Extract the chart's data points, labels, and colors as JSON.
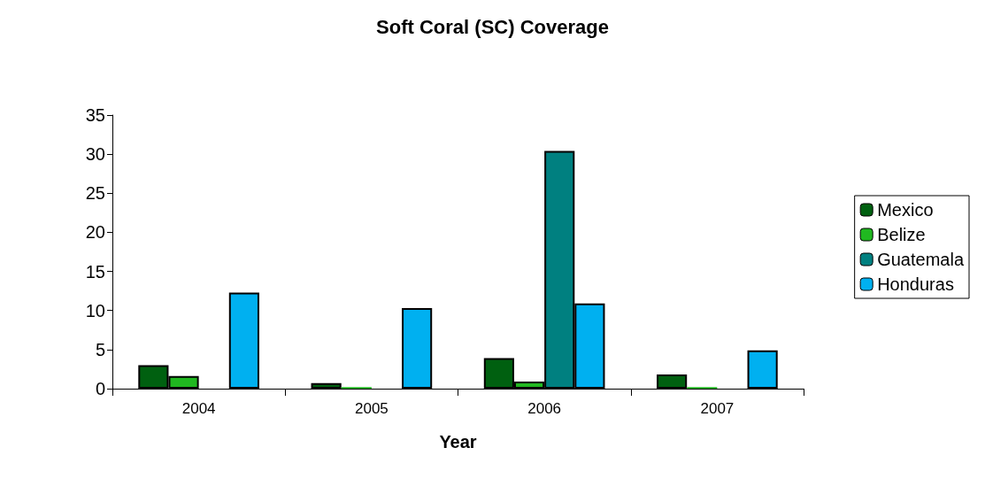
{
  "chart_data": {
    "type": "bar",
    "title": "Soft Coral (SC) Coverage",
    "xlabel": "Year",
    "categories": [
      "2004",
      "2005",
      "2006",
      "2007"
    ],
    "series": [
      {
        "name": "Mexico",
        "color": "#006010",
        "values": [
          3.0,
          0.7,
          3.9,
          1.8
        ]
      },
      {
        "name": "Belize",
        "color": "#20b820",
        "values": [
          1.6,
          0.2,
          0.9,
          0.2
        ]
      },
      {
        "name": "Guatemala",
        "color": "#008080",
        "values": [
          null,
          null,
          30.4,
          null
        ]
      },
      {
        "name": "Honduras",
        "color": "#00b0f0",
        "values": [
          12.3,
          10.3,
          10.9,
          4.9
        ]
      }
    ],
    "ylim": [
      0,
      35
    ],
    "yticks": [
      0,
      5,
      10,
      15,
      20,
      25,
      30,
      35
    ],
    "grid": false,
    "legend": "right"
  }
}
